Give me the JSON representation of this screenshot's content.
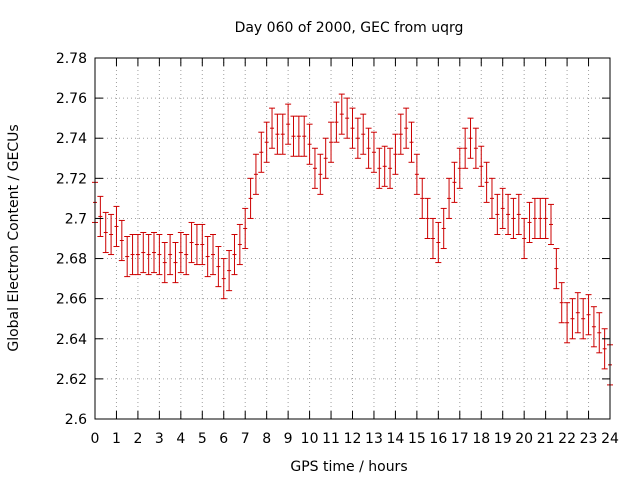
{
  "chart_data": {
    "type": "scatter",
    "title": "Day 060 of 2000, GEC from uqrg",
    "xlabel": "GPS time / hours",
    "ylabel": "Global Electron Content / GECUs",
    "xlim": [
      0,
      24
    ],
    "ylim": [
      2.6,
      2.78
    ],
    "xticks": [
      "0",
      "1",
      "2",
      "3",
      "4",
      "5",
      "6",
      "7",
      "8",
      "9",
      "10",
      "11",
      "12",
      "13",
      "14",
      "15",
      "16",
      "17",
      "18",
      "19",
      "20",
      "21",
      "22",
      "23",
      "24"
    ],
    "yticks": [
      "2.6",
      "2.62",
      "2.64",
      "2.66",
      "2.68",
      "2.7",
      "2.72",
      "2.74",
      "2.76",
      "2.78"
    ],
    "grid": true,
    "error_bars": true,
    "series_color": "#cc0000",
    "series": [
      {
        "x": [
          0.0,
          0.25,
          0.5,
          0.75,
          1.0,
          1.25,
          1.5,
          1.75,
          2.0,
          2.25,
          2.5,
          2.75,
          3.0,
          3.25,
          3.5,
          3.75,
          4.0,
          4.25,
          4.5,
          4.75,
          5.0,
          5.25,
          5.5,
          5.75,
          6.0,
          6.25,
          6.5,
          6.75,
          7.0,
          7.25,
          7.5,
          7.75,
          8.0,
          8.25,
          8.5,
          8.75,
          9.0,
          9.25,
          9.5,
          9.75,
          10.0,
          10.25,
          10.5,
          10.75,
          11.0,
          11.25,
          11.5,
          11.75,
          12.0,
          12.25,
          12.5,
          12.75,
          13.0,
          13.25,
          13.5,
          13.75,
          14.0,
          14.25,
          14.5,
          14.75,
          15.0,
          15.25,
          15.5,
          15.75,
          16.0,
          16.25,
          16.5,
          16.75,
          17.0,
          17.25,
          17.5,
          17.75,
          18.0,
          18.25,
          18.5,
          18.75,
          19.0,
          19.25,
          19.5,
          19.75,
          20.0,
          20.25,
          20.5,
          20.75,
          21.0,
          21.25,
          21.5,
          21.75,
          22.0,
          22.25,
          22.5,
          22.75,
          23.0,
          23.25,
          23.5,
          23.75,
          24.0
        ],
        "y": [
          2.708,
          2.701,
          2.693,
          2.692,
          2.696,
          2.689,
          2.681,
          2.682,
          2.682,
          2.683,
          2.682,
          2.683,
          2.682,
          2.678,
          2.682,
          2.678,
          2.683,
          2.682,
          2.688,
          2.687,
          2.687,
          2.681,
          2.682,
          2.676,
          2.67,
          2.674,
          2.682,
          2.687,
          2.695,
          2.71,
          2.722,
          2.733,
          2.738,
          2.745,
          2.742,
          2.742,
          2.747,
          2.741,
          2.741,
          2.741,
          2.737,
          2.725,
          2.722,
          2.73,
          2.738,
          2.748,
          2.752,
          2.75,
          2.745,
          2.74,
          2.742,
          2.735,
          2.733,
          2.725,
          2.726,
          2.725,
          2.732,
          2.742,
          2.745,
          2.738,
          2.722,
          2.71,
          2.7,
          2.69,
          2.688,
          2.695,
          2.71,
          2.718,
          2.725,
          2.735,
          2.74,
          2.735,
          2.726,
          2.718,
          2.71,
          2.702,
          2.705,
          2.702,
          2.7,
          2.702,
          2.69,
          2.698,
          2.7,
          2.7,
          2.7,
          2.697,
          2.675,
          2.658,
          2.648,
          2.65,
          2.653,
          2.65,
          2.652,
          2.646,
          2.643,
          2.635,
          2.627
        ],
        "err": [
          0.01,
          0.01,
          0.01,
          0.01,
          0.01,
          0.01,
          0.01,
          0.01,
          0.01,
          0.01,
          0.01,
          0.01,
          0.01,
          0.01,
          0.01,
          0.01,
          0.01,
          0.01,
          0.01,
          0.01,
          0.01,
          0.01,
          0.01,
          0.01,
          0.01,
          0.01,
          0.01,
          0.01,
          0.01,
          0.01,
          0.01,
          0.01,
          0.01,
          0.01,
          0.01,
          0.01,
          0.01,
          0.01,
          0.01,
          0.01,
          0.01,
          0.01,
          0.01,
          0.01,
          0.01,
          0.01,
          0.01,
          0.01,
          0.01,
          0.01,
          0.01,
          0.01,
          0.01,
          0.01,
          0.01,
          0.01,
          0.01,
          0.01,
          0.01,
          0.01,
          0.01,
          0.01,
          0.01,
          0.01,
          0.01,
          0.01,
          0.01,
          0.01,
          0.01,
          0.01,
          0.01,
          0.01,
          0.01,
          0.01,
          0.01,
          0.01,
          0.01,
          0.01,
          0.01,
          0.01,
          0.01,
          0.01,
          0.01,
          0.01,
          0.01,
          0.01,
          0.01,
          0.01,
          0.01,
          0.01,
          0.01,
          0.01,
          0.01,
          0.01,
          0.01,
          0.01,
          0.01
        ]
      }
    ]
  }
}
